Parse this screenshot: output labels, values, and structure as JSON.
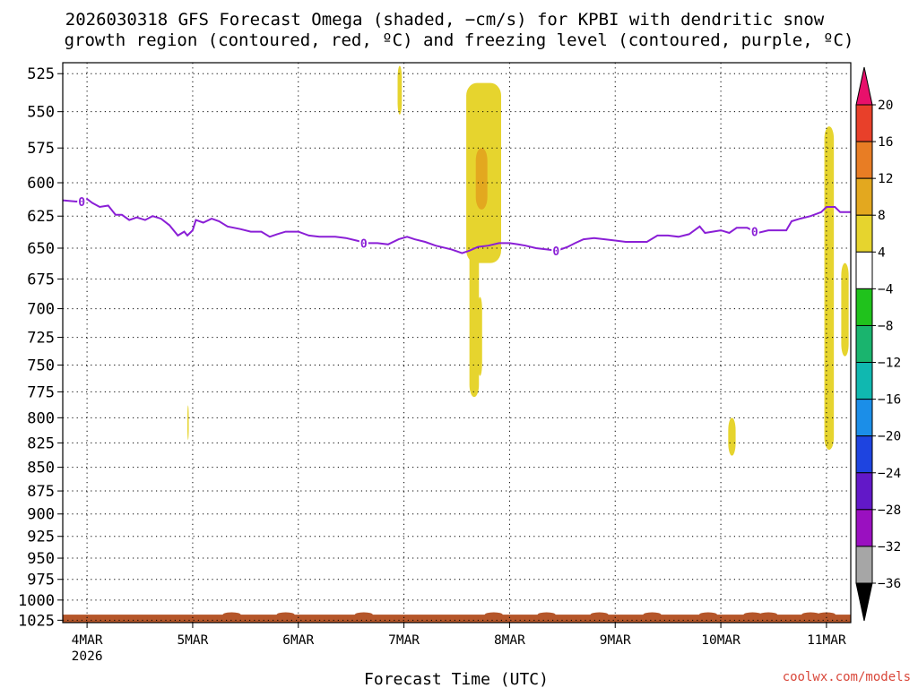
{
  "title_line1": "2026030318 GFS Forecast Omega (shaded, −cm/s) for KPBI with dendritic snow",
  "title_line2": "growth region (contoured, red, ºC) and freezing level (contoured, purple, ºC)",
  "credit": "coolwx.com/models",
  "chart_data": {
    "type": "heatmap",
    "xlabel": "Forecast Time (UTC)",
    "x_ticks": [
      {
        "t": 0,
        "label": "4MAR",
        "sub": "2026"
      },
      {
        "t": 1,
        "label": "5MAR",
        "sub": ""
      },
      {
        "t": 2,
        "label": "6MAR",
        "sub": ""
      },
      {
        "t": 3,
        "label": "7MAR",
        "sub": ""
      },
      {
        "t": 4,
        "label": "8MAR",
        "sub": ""
      },
      {
        "t": 5,
        "label": "9MAR",
        "sub": ""
      },
      {
        "t": 6,
        "label": "10MAR",
        "sub": ""
      },
      {
        "t": 7,
        "label": "11MAR",
        "sub": ""
      }
    ],
    "x_range": [
      -0.23,
      7.23
    ],
    "y_ticks": [
      525,
      550,
      575,
      600,
      625,
      650,
      675,
      700,
      725,
      750,
      775,
      800,
      825,
      850,
      875,
      900,
      925,
      950,
      975,
      1000,
      1025
    ],
    "y_range_hPa": [
      518,
      1028
    ],
    "y_scale": "log",
    "grid": "dotted",
    "colorbar": {
      "levels": [
        "20",
        "16",
        "12",
        "8",
        "4",
        "−4",
        "−8",
        "−12",
        "−16",
        "−20",
        "−24",
        "−28",
        "−32",
        "−36"
      ],
      "colors": [
        "#e8106b",
        "#e8402a",
        "#e87d24",
        "#e3a81f",
        "#e6d42e",
        "#ffffff",
        "#20c21c",
        "#1ab46e",
        "#10b8b0",
        "#1b8ee8",
        "#1e44e0",
        "#6218c8",
        "#9a10c0",
        "#a6a6a6",
        "#000000"
      ]
    },
    "freezing_level": {
      "label": "0",
      "color": "#8a1fd6",
      "points": [
        [
          -0.23,
          613
        ],
        [
          -0.1,
          614
        ],
        [
          0.0,
          612
        ],
        [
          0.05,
          615
        ],
        [
          0.12,
          618
        ],
        [
          0.2,
          617
        ],
        [
          0.27,
          624
        ],
        [
          0.33,
          624
        ],
        [
          0.4,
          628
        ],
        [
          0.47,
          626
        ],
        [
          0.55,
          628
        ],
        [
          0.62,
          625
        ],
        [
          0.7,
          627
        ],
        [
          0.78,
          632
        ],
        [
          0.86,
          640
        ],
        [
          0.92,
          637
        ],
        [
          0.95,
          640
        ],
        [
          1.0,
          636
        ],
        [
          1.03,
          628
        ],
        [
          1.1,
          630
        ],
        [
          1.18,
          627
        ],
        [
          1.25,
          629
        ],
        [
          1.33,
          633
        ],
        [
          1.45,
          635
        ],
        [
          1.55,
          637
        ],
        [
          1.65,
          637
        ],
        [
          1.73,
          641
        ],
        [
          1.8,
          639
        ],
        [
          1.88,
          637
        ],
        [
          2.0,
          637
        ],
        [
          2.1,
          640
        ],
        [
          2.2,
          641
        ],
        [
          2.35,
          641
        ],
        [
          2.45,
          642
        ],
        [
          2.55,
          644
        ],
        [
          2.65,
          646
        ],
        [
          2.75,
          646
        ],
        [
          2.85,
          647
        ],
        [
          2.95,
          643
        ],
        [
          3.03,
          641
        ],
        [
          3.1,
          643
        ],
        [
          3.2,
          645
        ],
        [
          3.3,
          648
        ],
        [
          3.45,
          651
        ],
        [
          3.55,
          654
        ],
        [
          3.62,
          652
        ],
        [
          3.7,
          649
        ],
        [
          3.8,
          648
        ],
        [
          3.9,
          646
        ],
        [
          4.0,
          646
        ],
        [
          4.08,
          647
        ],
        [
          4.15,
          648
        ],
        [
          4.25,
          650
        ],
        [
          4.35,
          651
        ],
        [
          4.45,
          652
        ],
        [
          4.55,
          649
        ],
        [
          4.62,
          646
        ],
        [
          4.7,
          643
        ],
        [
          4.8,
          642
        ],
        [
          4.9,
          643
        ],
        [
          5.0,
          644
        ],
        [
          5.1,
          645
        ],
        [
          5.2,
          645
        ],
        [
          5.3,
          645
        ],
        [
          5.4,
          640
        ],
        [
          5.5,
          640
        ],
        [
          5.6,
          641
        ],
        [
          5.7,
          639
        ],
        [
          5.8,
          633
        ],
        [
          5.85,
          638
        ],
        [
          6.0,
          636
        ],
        [
          6.08,
          638
        ],
        [
          6.15,
          634
        ],
        [
          6.25,
          634
        ],
        [
          6.35,
          638
        ],
        [
          6.45,
          636
        ],
        [
          6.55,
          636
        ],
        [
          6.62,
          636
        ],
        [
          6.67,
          629
        ],
        [
          6.75,
          627
        ],
        [
          6.85,
          625
        ],
        [
          6.95,
          622
        ],
        [
          7.0,
          618
        ],
        [
          7.08,
          618
        ],
        [
          7.13,
          622
        ],
        [
          7.23,
          622
        ]
      ],
      "label_positions": [
        [
          -0.05,
          614
        ],
        [
          2.62,
          646
        ],
        [
          4.44,
          652
        ],
        [
          6.32,
          637
        ]
      ]
    },
    "omega_regions": [
      {
        "level": "4",
        "color": "#e6d42e",
        "t0": 3.59,
        "t1": 3.92,
        "p_top": 531,
        "p_bot": 662
      },
      {
        "level": "4",
        "color": "#e6d42e",
        "t0": 3.62,
        "t1": 3.71,
        "p_top": 640,
        "p_bot": 780
      },
      {
        "level": "4",
        "color": "#e6d42e",
        "t0": 3.7,
        "t1": 3.74,
        "p_top": 690,
        "p_bot": 760
      },
      {
        "level": "8",
        "color": "#e3a81f",
        "t0": 3.68,
        "t1": 3.79,
        "p_top": 575,
        "p_bot": 620
      },
      {
        "level": "4",
        "color": "#e6d42e",
        "t0": 2.94,
        "t1": 2.98,
        "p_top": 520,
        "p_bot": 552
      },
      {
        "level": "4",
        "color": "#e6d42e",
        "t0": 6.07,
        "t1": 6.14,
        "p_top": 800,
        "p_bot": 838
      },
      {
        "level": "4",
        "color": "#e6d42e",
        "t0": 6.98,
        "t1": 7.07,
        "p_top": 560,
        "p_bot": 832
      },
      {
        "level": "4",
        "color": "#e6d42e",
        "t0": 7.14,
        "t1": 7.21,
        "p_top": 662,
        "p_bot": 742
      },
      {
        "level": "4",
        "color": "#e6d42e",
        "t0": 0.95,
        "t1": 0.96,
        "p_top": 788,
        "p_bot": 822
      }
    ],
    "surface_band": {
      "color": "#b5562a",
      "p_top": 1018,
      "p_bot": 1028
    }
  }
}
